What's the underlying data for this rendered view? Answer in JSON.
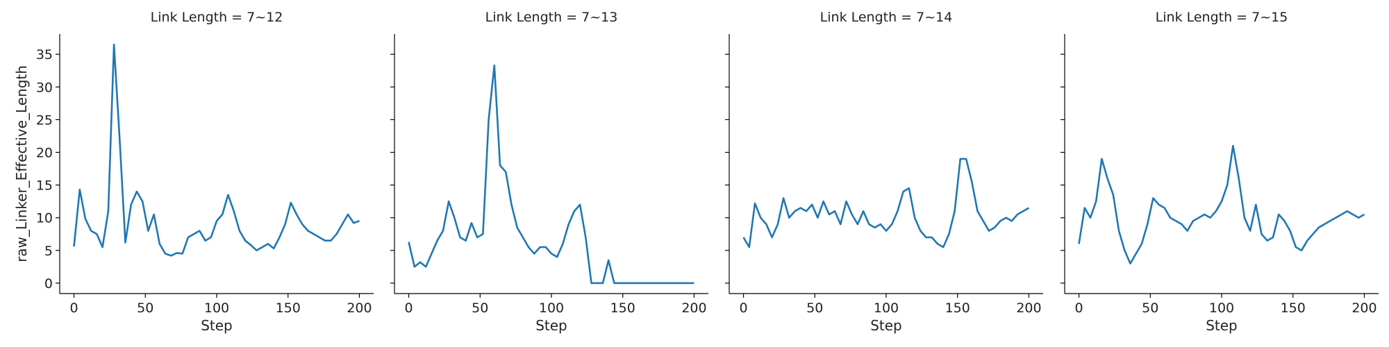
{
  "chart_data": [
    {
      "type": "line",
      "title": "Link Length = 7~12",
      "xlabel": "Step",
      "ylabel": "raw_Linker_Effective_Length",
      "color": "#1f77b4",
      "x": [
        0,
        4,
        8,
        12,
        16,
        20,
        24,
        28,
        32,
        36,
        40,
        44,
        48,
        52,
        56,
        60,
        64,
        68,
        72,
        76,
        80,
        84,
        88,
        92,
        96,
        100,
        104,
        108,
        112,
        116,
        120,
        124,
        128,
        132,
        136,
        140,
        144,
        148,
        152,
        156,
        160,
        164,
        168,
        172,
        176,
        180,
        184,
        188,
        192,
        196,
        200
      ],
      "values": [
        5.6,
        14.3,
        9.8,
        8,
        7.5,
        5.5,
        11,
        36.5,
        22,
        6.2,
        12,
        14,
        12.5,
        8,
        10.5,
        6,
        4.5,
        4.2,
        4.6,
        4.5,
        7,
        7.5,
        8,
        6.5,
        7,
        9.5,
        10.5,
        13.5,
        11,
        8,
        6.5,
        5.8,
        5,
        5.5,
        6,
        5.3,
        7,
        9,
        12.3,
        10.5,
        9,
        8,
        7.5,
        7,
        6.5,
        6.5,
        7.5,
        9,
        10.5,
        9.2,
        9.5
      ],
      "xlim": [
        -10,
        210
      ],
      "ylim": [
        -1.6,
        38.1
      ],
      "xticks": [
        0,
        50,
        100,
        150,
        200
      ],
      "yticks": [
        0,
        5,
        10,
        15,
        20,
        25,
        30,
        35
      ]
    },
    {
      "type": "line",
      "title": "Link Length = 7~13",
      "xlabel": "Step",
      "color": "#1f77b4",
      "x": [
        0,
        4,
        8,
        12,
        16,
        20,
        24,
        28,
        32,
        36,
        40,
        44,
        48,
        52,
        56,
        60,
        64,
        68,
        72,
        76,
        80,
        84,
        88,
        92,
        96,
        100,
        104,
        108,
        112,
        116,
        120,
        124,
        128,
        132,
        136,
        140,
        144,
        148,
        152,
        156,
        160,
        164,
        168,
        172,
        176,
        180,
        184,
        188,
        192,
        196,
        200
      ],
      "values": [
        6.3,
        2.5,
        3.2,
        2.5,
        4.5,
        6.5,
        8,
        12.5,
        10,
        7,
        6.5,
        9.2,
        7,
        7.5,
        25,
        33.3,
        18,
        17,
        12,
        8.5,
        7,
        5.5,
        4.5,
        5.5,
        5.5,
        4.5,
        4,
        6,
        9,
        11,
        12,
        7,
        0,
        0,
        0,
        3.5,
        0,
        0,
        0,
        0,
        0,
        0,
        0,
        0,
        0,
        0,
        0,
        0,
        0,
        0,
        0
      ],
      "xlim": [
        -10,
        210
      ],
      "ylim": [
        -1.6,
        38.1
      ],
      "xticks": [
        0,
        50,
        100,
        150,
        200
      ]
    },
    {
      "type": "line",
      "title": "Link Length = 7~14",
      "xlabel": "Step",
      "color": "#1f77b4",
      "x": [
        0,
        4,
        8,
        12,
        16,
        20,
        24,
        28,
        32,
        36,
        40,
        44,
        48,
        52,
        56,
        60,
        64,
        68,
        72,
        76,
        80,
        84,
        88,
        92,
        96,
        100,
        104,
        108,
        112,
        116,
        120,
        124,
        128,
        132,
        136,
        140,
        144,
        148,
        152,
        156,
        160,
        164,
        168,
        172,
        176,
        180,
        184,
        188,
        192,
        196,
        200
      ],
      "values": [
        7,
        5.5,
        12.2,
        10,
        9,
        7,
        9,
        13,
        10,
        11,
        11.5,
        11,
        12,
        10,
        12.5,
        10.5,
        11,
        9,
        12.5,
        10.5,
        9,
        11,
        9,
        8.5,
        9,
        8,
        9,
        11,
        14,
        14.5,
        10,
        8,
        7,
        7,
        6,
        5.5,
        7.5,
        11,
        19,
        19,
        15.5,
        11,
        9.5,
        8,
        8.5,
        9.5,
        10,
        9.5,
        10.5,
        11,
        11.5
      ],
      "xlim": [
        -10,
        210
      ],
      "ylim": [
        -1.6,
        38.1
      ],
      "xticks": [
        0,
        50,
        100,
        150,
        200
      ]
    },
    {
      "type": "line",
      "title": "Link Length = 7~15",
      "xlabel": "Step",
      "color": "#1f77b4",
      "x": [
        0,
        4,
        8,
        12,
        16,
        20,
        24,
        28,
        32,
        36,
        40,
        44,
        48,
        52,
        56,
        60,
        64,
        68,
        72,
        76,
        80,
        84,
        88,
        92,
        96,
        100,
        104,
        108,
        112,
        116,
        120,
        124,
        128,
        132,
        136,
        140,
        144,
        148,
        152,
        156,
        160,
        164,
        168,
        172,
        176,
        180,
        184,
        188,
        192,
        196,
        200
      ],
      "values": [
        6,
        11.5,
        10,
        12.5,
        19,
        16,
        13.5,
        8,
        5,
        3,
        4.5,
        6,
        9,
        13,
        12,
        11.5,
        10,
        9.5,
        9,
        8,
        9.5,
        10,
        10.5,
        10,
        11,
        12.5,
        15,
        21,
        16,
        10,
        8,
        12,
        7.5,
        6.5,
        7,
        10.5,
        9.5,
        8,
        5.5,
        5,
        6.5,
        7.5,
        8.5,
        9,
        9.5,
        10,
        10.5,
        11,
        10.5,
        10,
        10.5
      ],
      "xlim": [
        -10,
        210
      ],
      "ylim": [
        -1.6,
        38.1
      ],
      "xticks": [
        0,
        50,
        100,
        150,
        200
      ]
    }
  ]
}
